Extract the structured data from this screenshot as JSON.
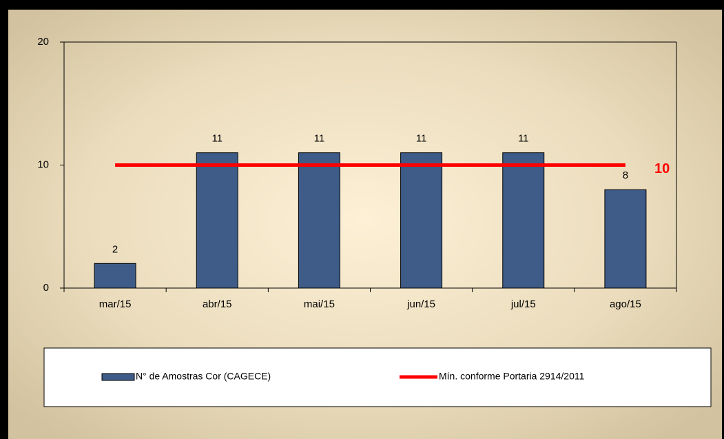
{
  "chart_data": {
    "type": "bar",
    "categories": [
      "mar/15",
      "abr/15",
      "mai/15",
      "jun/15",
      "jul/15",
      "ago/15"
    ],
    "series": [
      {
        "name": "N° de Amostras Cor (CAGECE)",
        "type": "bar",
        "color": "#3e5c87",
        "values": [
          2,
          11,
          11,
          11,
          11,
          8
        ]
      },
      {
        "name": "Mín. conforme Portaria 2914/2011",
        "type": "line",
        "color": "#ff0000",
        "values": [
          10,
          10,
          10,
          10,
          10,
          10
        ]
      }
    ],
    "annotations": [
      "10"
    ],
    "ylim": [
      0,
      20
    ],
    "yticks": [
      0,
      10,
      20
    ],
    "grid": false
  }
}
